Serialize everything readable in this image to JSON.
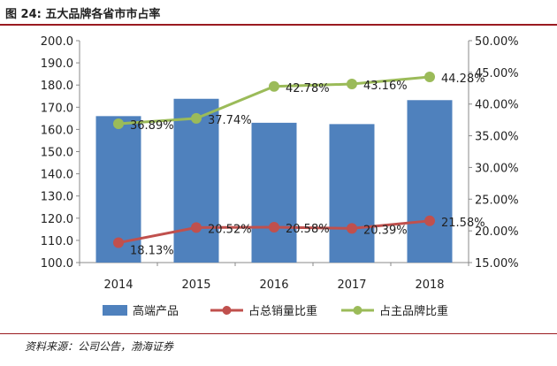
{
  "figure_title": "图 24:  五大品牌各省市市占率",
  "source_note": "资料来源：公司公告，渤海证券",
  "colors": {
    "bar": "#4f81bd",
    "red": "#c0504d",
    "green": "#9bbb59",
    "accent": "#9a1b20"
  },
  "chart_data": {
    "type": "bar+line",
    "title": "五大品牌各省市市占率",
    "categories": [
      "2014",
      "2015",
      "2016",
      "2017",
      "2018"
    ],
    "left_axis": {
      "min": 100,
      "max": 200,
      "ticks": [
        "100.0",
        "110.0",
        "120.0",
        "130.0",
        "140.0",
        "150.0",
        "160.0",
        "170.0",
        "180.0",
        "190.0",
        "200.0"
      ]
    },
    "right_axis": {
      "min": 15,
      "max": 50,
      "ticks": [
        "15.00%",
        "20.00%",
        "25.00%",
        "30.00%",
        "35.00%",
        "40.00%",
        "45.00%",
        "50.00%"
      ]
    },
    "series": [
      {
        "name": "高端产品",
        "type": "bar",
        "axis": "left",
        "values": [
          166,
          173.8,
          163,
          162.4,
          173.2
        ]
      },
      {
        "name": "占总销量比重",
        "type": "line",
        "axis": "right",
        "values": [
          18.13,
          20.52,
          20.58,
          20.39,
          21.58
        ],
        "labels": [
          "18.13%",
          "20.52%",
          "20.58%",
          "20.39%",
          "21.58%"
        ]
      },
      {
        "name": "占主品牌比重",
        "type": "line",
        "axis": "right",
        "values": [
          36.89,
          37.74,
          42.78,
          43.16,
          44.28
        ],
        "labels": [
          "36.89%",
          "37.74%",
          "42.78%",
          "43.16%",
          "44.28%"
        ]
      }
    ],
    "legend": [
      "高端产品",
      "占总销量比重",
      "占主品牌比重"
    ],
    "legend_position": "bottom"
  }
}
